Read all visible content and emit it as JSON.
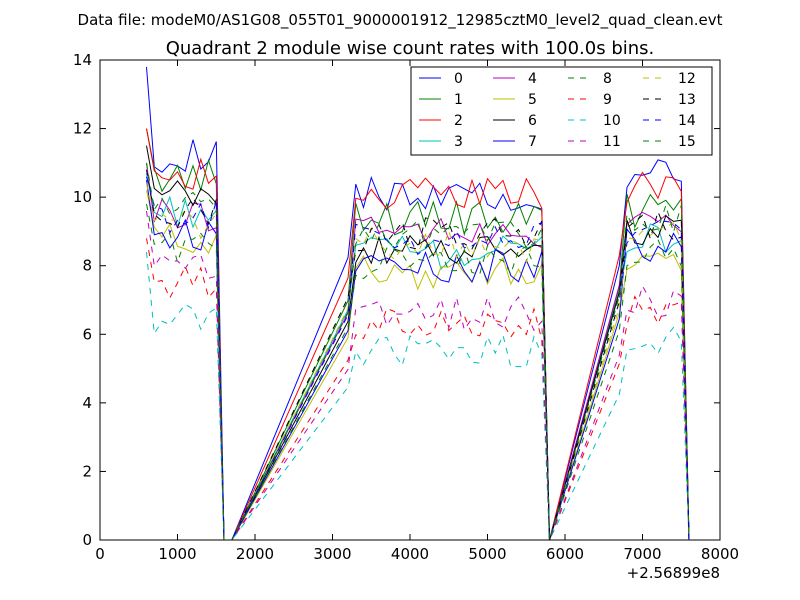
{
  "figure": {
    "suptitle": "Data file: modeM0/AS1G08_055T01_9000001912_12985cztM0_level2_quad_clean.evt",
    "title": "Quadrant 2 module wise count rates with 100.0s bins.",
    "offset_label": "+2.56899e8"
  },
  "chart_data": {
    "type": "line",
    "title": "Quadrant 2 module wise count rates with 100.0s bins.",
    "xlabel": "",
    "ylabel": "",
    "xlim": [
      0,
      8000
    ],
    "ylim": [
      0,
      14
    ],
    "x_offset": 256899000,
    "xticks": [
      0,
      1000,
      2000,
      3000,
      4000,
      5000,
      6000,
      7000,
      8000
    ],
    "yticks": [
      0,
      2,
      4,
      6,
      8,
      10,
      12,
      14
    ],
    "grid": false,
    "legend_position": "top-right",
    "legend_columns": 4,
    "segments": [
      {
        "x_start": 600,
        "x_step": 100,
        "count": 10,
        "gap_to": 1700
      },
      {
        "x_start": 3200,
        "x_step": 100,
        "count": 26,
        "gap_to": 5800
      },
      {
        "x_start": 6700,
        "x_step": 100,
        "count": 9,
        "gap_to": 7500
      }
    ],
    "series": [
      {
        "name": "0",
        "color": "#0000ff",
        "style": "solid",
        "levels": [
          11.2,
          10.1,
          10.6
        ],
        "first_value": 13.8
      },
      {
        "name": "1",
        "color": "#008000",
        "style": "solid",
        "levels": [
          10.6,
          9.4,
          9.6
        ],
        "first_value": 12.0
      },
      {
        "name": "2",
        "color": "#ff0000",
        "style": "solid",
        "levels": [
          10.7,
          10.1,
          10.3
        ],
        "first_value": 12.0
      },
      {
        "name": "3",
        "color": "#00bfbf",
        "style": "solid",
        "levels": [
          9.6,
          8.4,
          8.8
        ],
        "first_value": 10.7
      },
      {
        "name": "4",
        "color": "#bf00bf",
        "style": "solid",
        "levels": [
          9.5,
          9.0,
          9.2
        ],
        "first_value": 11.0
      },
      {
        "name": "5",
        "color": "#bfbf00",
        "style": "solid",
        "levels": [
          8.8,
          7.8,
          8.2
        ],
        "first_value": 10.2
      },
      {
        "name": "6",
        "color": "#000000",
        "style": "solid",
        "levels": [
          10.0,
          8.4,
          9.0
        ],
        "first_value": 11.5
      },
      {
        "name": "7",
        "color": "#0000ff",
        "style": "solid",
        "levels": [
          8.9,
          8.0,
          8.6
        ],
        "first_value": 10.5
      },
      {
        "name": "8",
        "color": "#008000",
        "style": "dashed",
        "levels": [
          8.6,
          8.1,
          8.3
        ],
        "first_value": 9.8
      },
      {
        "name": "9",
        "color": "#ff0000",
        "style": "dashed",
        "levels": [
          7.5,
          6.3,
          6.7
        ],
        "first_value": 8.8
      },
      {
        "name": "10",
        "color": "#00bfbf",
        "style": "dashed",
        "levels": [
          6.5,
          5.5,
          5.9
        ],
        "first_value": 8.4
      },
      {
        "name": "11",
        "color": "#bf00bf",
        "style": "dashed",
        "levels": [
          7.9,
          6.6,
          7.0
        ],
        "first_value": 9.6
      },
      {
        "name": "12",
        "color": "#bfbf00",
        "style": "dashed",
        "levels": [
          9.2,
          8.6,
          8.9
        ],
        "first_value": 10.4
      },
      {
        "name": "13",
        "color": "#000000",
        "style": "dashed",
        "levels": [
          9.6,
          8.9,
          9.1
        ],
        "first_value": 10.8
      },
      {
        "name": "14",
        "color": "#0000ff",
        "style": "dashed",
        "levels": [
          9.4,
          8.8,
          9.0
        ],
        "first_value": 10.6
      },
      {
        "name": "15",
        "color": "#008000",
        "style": "dashed",
        "levels": [
          9.8,
          9.0,
          9.3
        ],
        "first_value": 11.0
      }
    ]
  }
}
